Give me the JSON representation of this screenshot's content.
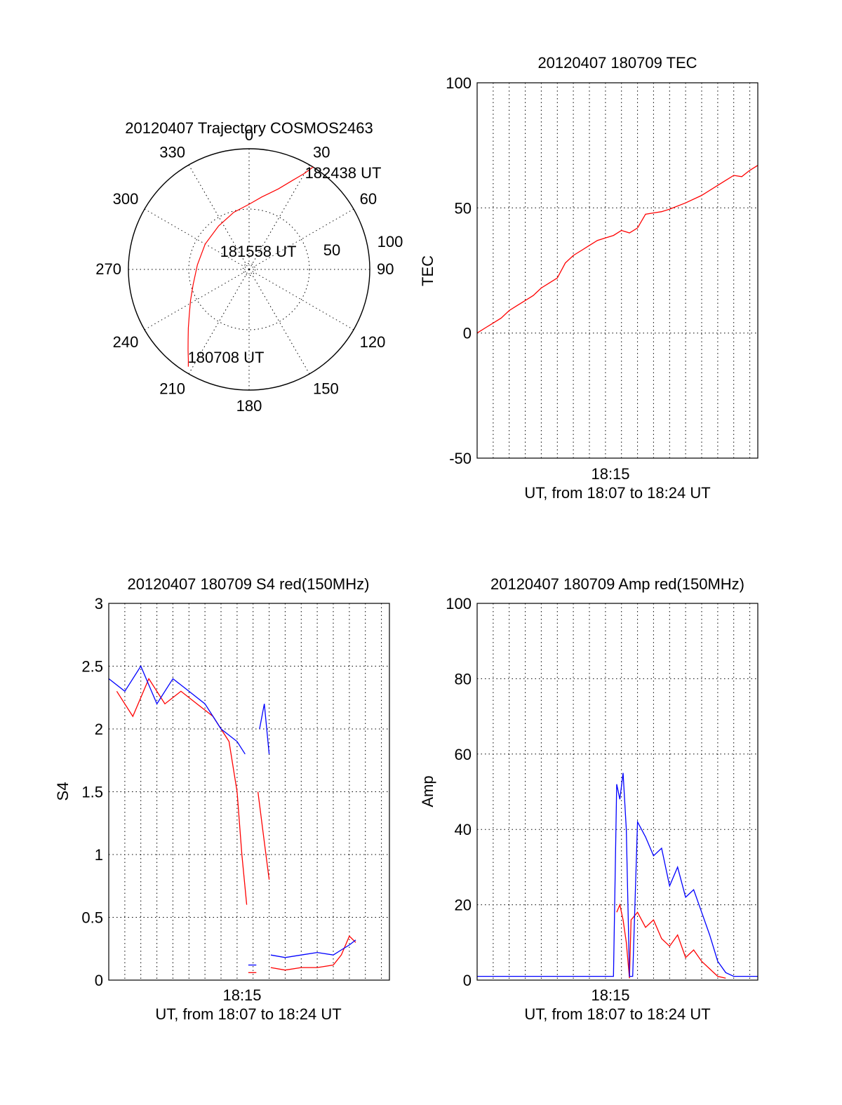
{
  "colors": {
    "red": "#ff0000",
    "blue": "#0000ff",
    "axis": "#000000"
  },
  "chart_data": [
    {
      "type": "polar",
      "title": "20120407 Trajectory COSMOS2463",
      "angle_labels": [
        "0",
        "30",
        "60",
        "90",
        "120",
        "150",
        "180",
        "210",
        "240",
        "270",
        "300",
        "330"
      ],
      "radius_labels": [
        "50",
        "100"
      ],
      "rlim": [
        0,
        100
      ],
      "trajectory": {
        "color": "red",
        "azimuth_deg": [
          212,
          214,
          217,
          221,
          226,
          233,
          242,
          255,
          275,
          300,
          325,
          345,
          0,
          10,
          20,
          26,
          30,
          32
        ],
        "radius": [
          95,
          90,
          84,
          77,
          70,
          62,
          55,
          48,
          43,
          42,
          44,
          49,
          54,
          61,
          71,
          82,
          92,
          100
        ]
      },
      "annotations": [
        {
          "text": "182438 UT",
          "azimuth_deg": 33,
          "radius": 100
        },
        {
          "text": "181558 UT",
          "azimuth_deg": 0,
          "radius": 0
        },
        {
          "text": "180708 UT",
          "azimuth_deg": 212,
          "radius": 95
        }
      ]
    },
    {
      "type": "line",
      "title": "20120407 180709 TEC",
      "ylabel": "TEC",
      "xlabel": "UT, from 18:07 to 18:24 UT",
      "x_tick_label": "18:15",
      "xlim_minutes": [
        0,
        17.5
      ],
      "ylim": [
        -50,
        100
      ],
      "yticks": [
        -50,
        0,
        50,
        100
      ],
      "grid": true,
      "series": [
        {
          "color": "red",
          "x_minutes": [
            0,
            0.5,
            1,
            1.5,
            2,
            2.5,
            3,
            3.5,
            4,
            4.5,
            5,
            5.5,
            6,
            6.5,
            7,
            7.5,
            8,
            8.5,
            9,
            9.5,
            10,
            10.5,
            11,
            11.5,
            12,
            13,
            14,
            15,
            15.5,
            16,
            16.5,
            17,
            17.5
          ],
          "values": [
            0,
            2,
            4,
            6,
            9,
            11,
            13,
            15,
            18,
            20,
            22,
            28,
            31,
            33,
            35,
            37,
            38,
            39,
            41,
            40,
            42,
            47.5,
            48,
            48.5,
            49.5,
            52,
            55,
            59,
            61,
            63,
            62.5,
            65,
            67
          ]
        }
      ]
    },
    {
      "type": "line",
      "title": "20120407 180709 S4 red(150MHz)",
      "ylabel": "S4",
      "xlabel": "UT, from 18:07 to 18:24 UT",
      "x_tick_label": "18:15",
      "xlim_minutes": [
        0,
        17.5
      ],
      "ylim": [
        0,
        3
      ],
      "yticks": [
        "0",
        "0.5",
        "1",
        "1.5",
        "2",
        "2.5",
        "3"
      ],
      "grid": true,
      "series": [
        {
          "color": "red",
          "segments": [
            {
              "x_minutes": [
                0.5,
                1.5,
                2.5,
                3.5,
                4.5,
                5.5,
                6.5,
                7.5,
                8
              ],
              "values": [
                2.3,
                2.1,
                2.4,
                2.2,
                2.3,
                2.2,
                2.1,
                1.9,
                1.5
              ]
            },
            {
              "x_minutes": [
                8,
                8.3,
                8.6
              ],
              "values": [
                1.5,
                1.0,
                0.6
              ]
            },
            {
              "x_minutes": [
                8.7,
                9.2
              ],
              "values": [
                0.06,
                0.06
              ]
            },
            {
              "x_minutes": [
                9.3,
                9.6,
                10
              ],
              "values": [
                1.5,
                1.2,
                0.8
              ]
            },
            {
              "x_minutes": [
                10.1,
                11,
                12,
                13,
                14,
                14.5,
                15,
                15.4
              ],
              "values": [
                0.1,
                0.08,
                0.1,
                0.1,
                0.12,
                0.2,
                0.35,
                0.3
              ]
            }
          ]
        },
        {
          "color": "blue",
          "segments": [
            {
              "x_minutes": [
                0,
                1,
                2,
                3,
                4,
                5,
                6,
                7,
                8,
                8.5
              ],
              "values": [
                2.4,
                2.3,
                2.5,
                2.2,
                2.4,
                2.3,
                2.2,
                2.0,
                1.9,
                1.8
              ]
            },
            {
              "x_minutes": [
                8.7,
                9.2
              ],
              "values": [
                0.12,
                0.12
              ]
            },
            {
              "x_minutes": [
                9.4,
                9.7,
                10
              ],
              "values": [
                2.0,
                2.2,
                1.8
              ]
            },
            {
              "x_minutes": [
                10.1,
                11,
                12,
                13,
                14,
                14.5,
                15,
                15.4
              ],
              "values": [
                0.2,
                0.18,
                0.2,
                0.22,
                0.2,
                0.24,
                0.28,
                0.32
              ]
            }
          ]
        }
      ]
    },
    {
      "type": "line",
      "title": "20120407 180709 Amp red(150MHz)",
      "ylabel": "Amp",
      "xlabel": "UT, from 18:07 to 18:24 UT",
      "x_tick_label": "18:15",
      "xlim_minutes": [
        0,
        17.5
      ],
      "ylim": [
        0,
        100
      ],
      "yticks": [
        0,
        20,
        40,
        60,
        80,
        100
      ],
      "grid": true,
      "series": [
        {
          "color": "red",
          "x_minutes": [
            8.7,
            8.9,
            9.1,
            9.3,
            9.5,
            9.6,
            10,
            10.5,
            11,
            11.5,
            12,
            12.5,
            13,
            13.5,
            14,
            14.5,
            15,
            15.5
          ],
          "values": [
            18,
            20,
            16,
            10,
            0.5,
            16,
            18,
            14,
            16,
            11,
            9,
            12,
            6,
            8,
            5,
            3,
            1,
            0.5
          ]
        },
        {
          "color": "blue",
          "x_minutes": [
            0,
            2,
            4,
            6,
            8.5,
            8.7,
            8.9,
            9.1,
            9.3,
            9.5,
            9.7,
            10,
            10.5,
            11,
            11.5,
            12,
            12.5,
            13,
            13.5,
            14,
            14.5,
            15,
            15.5,
            16,
            17,
            17.5
          ],
          "values": [
            1,
            1,
            1,
            1,
            1,
            52,
            48,
            55,
            40,
            1,
            1,
            42,
            38,
            33,
            35,
            25,
            30,
            22,
            24,
            18,
            12,
            5,
            2,
            1,
            1,
            1
          ]
        }
      ]
    }
  ]
}
